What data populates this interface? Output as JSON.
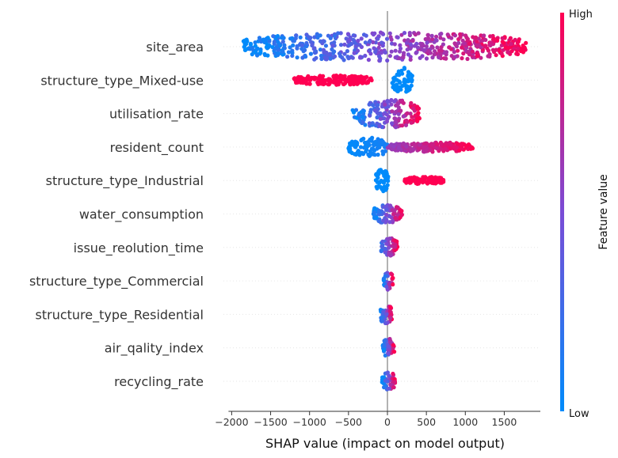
{
  "chart_data": {
    "type": "scatter",
    "subtype": "shap-beeswarm",
    "xlabel": "SHAP value (impact on model output)",
    "x_ticks": [
      -2000,
      -1500,
      -1000,
      -500,
      0,
      500,
      1000,
      1500
    ],
    "x_tick_labels": [
      "−2000",
      "−1500",
      "−1000",
      "−500",
      "0",
      "500",
      "1000",
      "1500"
    ],
    "xlim": [
      -2000,
      1950
    ],
    "colorbar": {
      "label": "Feature value",
      "high_label": "High",
      "low_label": "Low",
      "low_color": "#008bfb",
      "mid_color": "#7a4cd6",
      "high_color": "#ff0052"
    },
    "features": [
      {
        "name": "site_area",
        "segments": [
          {
            "min": -1850,
            "max": 1780,
            "color_from": 0.0,
            "color_to": 1.0,
            "halfwidth": 18
          }
        ]
      },
      {
        "name": "structure_type_Mixed-use",
        "segments": [
          {
            "min": -1200,
            "max": -200,
            "color_from": 1.0,
            "color_to": 1.0,
            "halfwidth": 6
          },
          {
            "min": 60,
            "max": 320,
            "color_from": 0.0,
            "color_to": 0.0,
            "halfwidth": 16
          }
        ]
      },
      {
        "name": "utilisation_rate",
        "segments": [
          {
            "min": -450,
            "max": 420,
            "color_from": 0.0,
            "color_to": 1.0,
            "halfwidth": 18
          }
        ]
      },
      {
        "name": "resident_count",
        "segments": [
          {
            "min": -500,
            "max": 0,
            "color_from": 0.0,
            "color_to": 0.1,
            "halfwidth": 12
          },
          {
            "min": 0,
            "max": 1100,
            "color_from": 0.6,
            "color_to": 1.0,
            "halfwidth": 6
          }
        ]
      },
      {
        "name": "structure_type_Industrial",
        "segments": [
          {
            "min": -150,
            "max": 10,
            "color_from": 0.0,
            "color_to": 0.0,
            "halfwidth": 14
          },
          {
            "min": 220,
            "max": 720,
            "color_from": 1.0,
            "color_to": 1.0,
            "halfwidth": 5
          }
        ]
      },
      {
        "name": "water_consumption",
        "segments": [
          {
            "min": -180,
            "max": 200,
            "color_from": 0.0,
            "color_to": 1.0,
            "halfwidth": 12
          }
        ]
      },
      {
        "name": "issue_reolution_time",
        "segments": [
          {
            "min": -80,
            "max": 130,
            "color_from": 0.2,
            "color_to": 1.0,
            "halfwidth": 12
          }
        ]
      },
      {
        "name": "structure_type_Commercial",
        "segments": [
          {
            "min": -50,
            "max": 70,
            "color_from": 0.0,
            "color_to": 1.0,
            "halfwidth": 12
          }
        ]
      },
      {
        "name": "structure_type_Residential",
        "segments": [
          {
            "min": -90,
            "max": 60,
            "color_from": 0.0,
            "color_to": 1.0,
            "halfwidth": 12
          }
        ]
      },
      {
        "name": "air_qality_index",
        "segments": [
          {
            "min": -60,
            "max": 90,
            "color_from": 0.0,
            "color_to": 1.0,
            "halfwidth": 12
          }
        ]
      },
      {
        "name": "recycling_rate",
        "segments": [
          {
            "min": -70,
            "max": 100,
            "color_from": 0.0,
            "color_to": 1.0,
            "halfwidth": 12
          }
        ]
      }
    ]
  }
}
